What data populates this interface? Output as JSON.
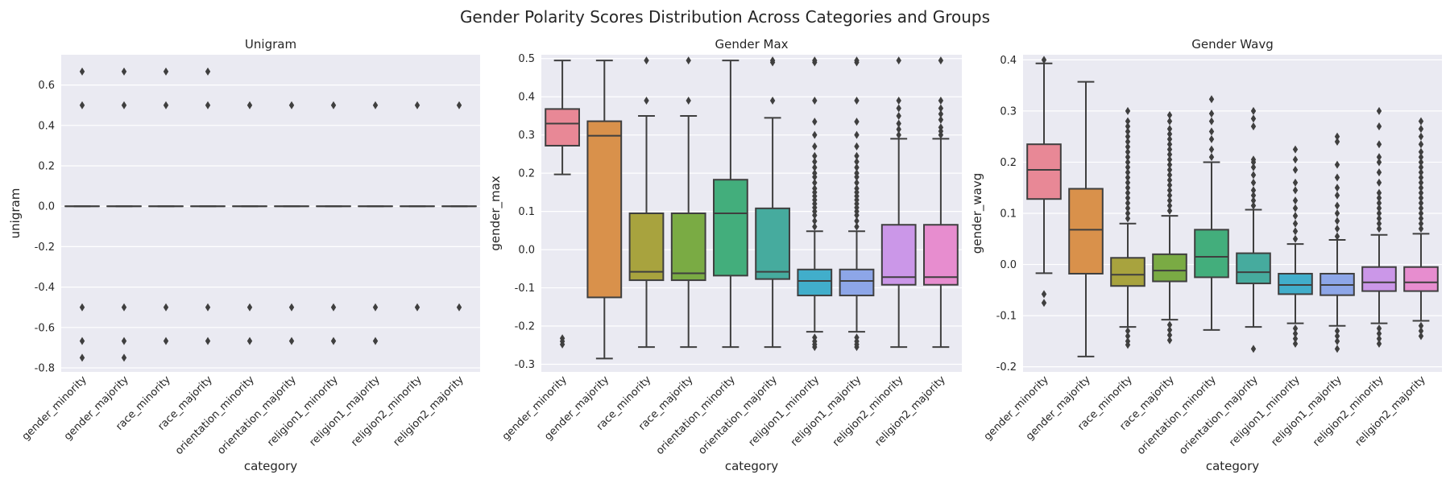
{
  "figure_title": "Gender Polarity Scores Distribution Across Categories and Groups",
  "chart_data": [
    {
      "type": "box",
      "title": "Unigram",
      "xlabel": "category",
      "ylabel": "unigram",
      "ylim": [
        -0.82,
        0.75
      ],
      "yticks": [
        -0.8,
        -0.6,
        -0.4,
        -0.2,
        0.0,
        0.2,
        0.4,
        0.6
      ],
      "categories": [
        "gender_minority",
        "gender_majority",
        "race_minority",
        "race_majority",
        "orientation_minority",
        "orientation_majority",
        "religion1_minority",
        "religion1_majority",
        "religion2_minority",
        "religion2_majority"
      ],
      "boxes": [
        {
          "q1": 0,
          "median": 0,
          "q3": 0,
          "whislo": 0,
          "whishi": 0,
          "fliers": [
            0.667,
            0.5,
            -0.5,
            -0.667,
            -0.75
          ]
        },
        {
          "q1": 0,
          "median": 0,
          "q3": 0,
          "whislo": 0,
          "whishi": 0,
          "fliers": [
            0.667,
            0.5,
            -0.5,
            -0.667,
            -0.75
          ]
        },
        {
          "q1": 0,
          "median": 0,
          "q3": 0,
          "whislo": 0,
          "whishi": 0,
          "fliers": [
            0.667,
            0.5,
            -0.5,
            -0.667
          ]
        },
        {
          "q1": 0,
          "median": 0,
          "q3": 0,
          "whislo": 0,
          "whishi": 0,
          "fliers": [
            0.667,
            0.5,
            -0.5,
            -0.667
          ]
        },
        {
          "q1": 0,
          "median": 0,
          "q3": 0,
          "whislo": 0,
          "whishi": 0,
          "fliers": [
            0.5,
            -0.5,
            -0.667
          ]
        },
        {
          "q1": 0,
          "median": 0,
          "q3": 0,
          "whislo": 0,
          "whishi": 0,
          "fliers": [
            0.5,
            -0.5,
            -0.667
          ]
        },
        {
          "q1": 0,
          "median": 0,
          "q3": 0,
          "whislo": 0,
          "whishi": 0,
          "fliers": [
            0.5,
            -0.5,
            -0.667
          ]
        },
        {
          "q1": 0,
          "median": 0,
          "q3": 0,
          "whislo": 0,
          "whishi": 0,
          "fliers": [
            0.5,
            -0.5,
            -0.667
          ]
        },
        {
          "q1": 0,
          "median": 0,
          "q3": 0,
          "whislo": 0,
          "whishi": 0,
          "fliers": [
            0.5,
            -0.5
          ]
        },
        {
          "q1": 0,
          "median": 0,
          "q3": 0,
          "whislo": 0,
          "whishi": 0,
          "fliers": [
            0.5,
            -0.5
          ]
        }
      ]
    },
    {
      "type": "box",
      "title": "Gender Max",
      "xlabel": "category",
      "ylabel": "gender_max",
      "ylim": [
        -0.32,
        0.51
      ],
      "yticks": [
        -0.3,
        -0.2,
        -0.1,
        0.0,
        0.1,
        0.2,
        0.3,
        0.4,
        0.5
      ],
      "categories": [
        "gender_minority",
        "gender_majority",
        "race_minority",
        "race_majority",
        "orientation_minority",
        "orientation_majority",
        "religion1_minority",
        "religion1_majority",
        "religion2_minority",
        "religion2_majority"
      ],
      "boxes": [
        {
          "q1": 0.272,
          "median": 0.33,
          "q3": 0.368,
          "whislo": 0.197,
          "whishi": 0.495,
          "fliers": [
            -0.232,
            -0.24,
            -0.248
          ]
        },
        {
          "q1": -0.125,
          "median": 0.298,
          "q3": 0.336,
          "whislo": -0.285,
          "whishi": 0.495,
          "fliers": []
        },
        {
          "q1": -0.08,
          "median": -0.058,
          "q3": 0.095,
          "whislo": -0.255,
          "whishi": 0.35,
          "fliers": [
            0.39,
            0.495
          ]
        },
        {
          "q1": -0.08,
          "median": -0.062,
          "q3": 0.095,
          "whislo": -0.255,
          "whishi": 0.35,
          "fliers": [
            0.39,
            0.495
          ]
        },
        {
          "q1": -0.068,
          "median": 0.095,
          "q3": 0.183,
          "whislo": -0.255,
          "whishi": 0.495,
          "fliers": []
        },
        {
          "q1": -0.077,
          "median": -0.058,
          "q3": 0.108,
          "whislo": -0.255,
          "whishi": 0.345,
          "fliers": [
            0.39,
            0.49,
            0.495
          ]
        },
        {
          "q1": -0.12,
          "median": -0.082,
          "q3": -0.052,
          "whislo": -0.215,
          "whishi": 0.048,
          "fliers": [
            0.06,
            0.075,
            0.09,
            0.1,
            0.11,
            0.12,
            0.13,
            0.14,
            0.15,
            0.16,
            0.175,
            0.19,
            0.2,
            0.215,
            0.23,
            0.245,
            0.27,
            0.3,
            0.335,
            0.39,
            0.49,
            0.495,
            -0.23,
            -0.24,
            -0.248,
            -0.255
          ]
        },
        {
          "q1": -0.12,
          "median": -0.082,
          "q3": -0.052,
          "whislo": -0.215,
          "whishi": 0.048,
          "fliers": [
            0.06,
            0.075,
            0.09,
            0.1,
            0.11,
            0.12,
            0.13,
            0.14,
            0.15,
            0.16,
            0.175,
            0.19,
            0.2,
            0.215,
            0.23,
            0.245,
            0.27,
            0.3,
            0.335,
            0.39,
            0.49,
            0.495,
            -0.23,
            -0.24,
            -0.248,
            -0.255
          ]
        },
        {
          "q1": -0.092,
          "median": -0.072,
          "q3": 0.065,
          "whislo": -0.255,
          "whishi": 0.29,
          "fliers": [
            0.3,
            0.315,
            0.33,
            0.35,
            0.37,
            0.39,
            0.495
          ]
        },
        {
          "q1": -0.092,
          "median": -0.072,
          "q3": 0.065,
          "whislo": -0.255,
          "whishi": 0.29,
          "fliers": [
            0.3,
            0.31,
            0.32,
            0.34,
            0.355,
            0.37,
            0.39,
            0.495
          ]
        }
      ]
    },
    {
      "type": "box",
      "title": "Gender Wavg",
      "xlabel": "category",
      "ylabel": "gender_wavg",
      "ylim": [
        -0.21,
        0.41
      ],
      "yticks": [
        -0.2,
        -0.1,
        0.0,
        0.1,
        0.2,
        0.3,
        0.4
      ],
      "categories": [
        "gender_minority",
        "gender_majority",
        "race_minority",
        "race_majority",
        "orientation_minority",
        "orientation_majority",
        "religion1_minority",
        "religion1_majority",
        "religion2_minority",
        "religion2_majority"
      ],
      "boxes": [
        {
          "q1": 0.128,
          "median": 0.185,
          "q3": 0.235,
          "whislo": -0.017,
          "whishi": 0.393,
          "fliers": [
            0.4,
            -0.058,
            -0.075
          ]
        },
        {
          "q1": -0.018,
          "median": 0.068,
          "q3": 0.148,
          "whislo": -0.18,
          "whishi": 0.357,
          "fliers": []
        },
        {
          "q1": -0.042,
          "median": -0.02,
          "q3": 0.013,
          "whislo": -0.122,
          "whishi": 0.08,
          "fliers": [
            0.09,
            0.1,
            0.11,
            0.12,
            0.13,
            0.14,
            0.15,
            0.16,
            0.17,
            0.18,
            0.19,
            0.2,
            0.21,
            0.22,
            0.23,
            0.24,
            0.25,
            0.26,
            0.27,
            0.28,
            0.3,
            -0.13,
            -0.14,
            -0.15,
            -0.157
          ]
        },
        {
          "q1": -0.033,
          "median": -0.012,
          "q3": 0.02,
          "whislo": -0.108,
          "whishi": 0.095,
          "fliers": [
            0.105,
            0.115,
            0.125,
            0.135,
            0.145,
            0.155,
            0.165,
            0.175,
            0.185,
            0.195,
            0.205,
            0.215,
            0.225,
            0.235,
            0.245,
            0.255,
            0.265,
            0.28,
            0.292,
            -0.118,
            -0.128,
            -0.138,
            -0.148
          ]
        },
        {
          "q1": -0.025,
          "median": 0.015,
          "q3": 0.068,
          "whislo": -0.128,
          "whishi": 0.2,
          "fliers": [
            0.21,
            0.225,
            0.245,
            0.26,
            0.28,
            0.295,
            0.323
          ]
        },
        {
          "q1": -0.037,
          "median": -0.015,
          "q3": 0.022,
          "whislo": -0.122,
          "whishi": 0.107,
          "fliers": [
            0.115,
            0.125,
            0.135,
            0.145,
            0.16,
            0.175,
            0.19,
            0.2,
            0.205,
            0.27,
            0.285,
            0.3,
            -0.165
          ]
        },
        {
          "q1": -0.058,
          "median": -0.04,
          "q3": -0.018,
          "whislo": -0.115,
          "whishi": 0.04,
          "fliers": [
            0.05,
            0.065,
            0.08,
            0.095,
            0.11,
            0.125,
            0.145,
            0.16,
            0.185,
            0.205,
            0.225,
            -0.125,
            -0.135,
            -0.145,
            -0.155
          ]
        },
        {
          "q1": -0.06,
          "median": -0.04,
          "q3": -0.018,
          "whislo": -0.12,
          "whishi": 0.048,
          "fliers": [
            0.055,
            0.07,
            0.085,
            0.1,
            0.115,
            0.135,
            0.15,
            0.17,
            0.195,
            0.24,
            0.25,
            -0.13,
            -0.14,
            -0.15,
            -0.165
          ]
        },
        {
          "q1": -0.052,
          "median": -0.035,
          "q3": -0.005,
          "whislo": -0.115,
          "whishi": 0.058,
          "fliers": [
            0.07,
            0.08,
            0.09,
            0.1,
            0.11,
            0.12,
            0.13,
            0.14,
            0.16,
            0.18,
            0.2,
            0.21,
            0.235,
            0.27,
            0.3,
            -0.125,
            -0.135,
            -0.145,
            -0.155
          ]
        },
        {
          "q1": -0.052,
          "median": -0.035,
          "q3": -0.005,
          "whislo": -0.11,
          "whishi": 0.06,
          "fliers": [
            0.07,
            0.08,
            0.09,
            0.1,
            0.11,
            0.12,
            0.13,
            0.14,
            0.15,
            0.16,
            0.17,
            0.18,
            0.19,
            0.2,
            0.21,
            0.22,
            0.235,
            0.25,
            0.265,
            0.28,
            -0.12,
            -0.13,
            -0.14
          ]
        }
      ]
    }
  ],
  "palette": [
    "#e88896",
    "#d9914b",
    "#a8a33e",
    "#7aab44",
    "#43ae7c",
    "#46ab9e",
    "#41aecb",
    "#8da6e8",
    "#cb97e8",
    "#e78dcf"
  ],
  "style": {
    "panel_bg": "#eaeaf2",
    "grid": "#ffffff",
    "line": "#3f3f3f"
  }
}
